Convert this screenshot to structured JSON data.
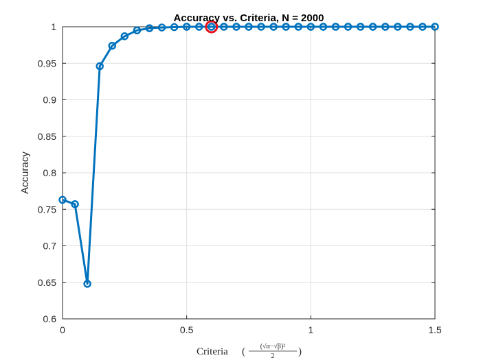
{
  "chart_data": {
    "type": "line",
    "title": "Accuracy vs. Criteria, N = 2000",
    "xlabel": "Criteria",
    "xlabel_math_numerator": "(√α−√β)²",
    "xlabel_math_denominator": "2",
    "ylabel": "Accuracy",
    "xlim": [
      0,
      1.5
    ],
    "ylim": [
      0.6,
      1.0
    ],
    "grid": true,
    "line_color": "#0072BD",
    "highlight_color": "#E8141E",
    "x_ticks": [
      0,
      0.5,
      1,
      1.5
    ],
    "x_tick_labels": [
      "0",
      "0.5",
      "1",
      "1.5"
    ],
    "y_ticks": [
      0.6,
      0.65,
      0.7,
      0.75,
      0.8,
      0.85,
      0.9,
      0.95,
      1.0
    ],
    "y_tick_labels": [
      "0.6",
      "0.65",
      "0.7",
      "0.75",
      "0.8",
      "0.85",
      "0.9",
      "0.95",
      "1"
    ],
    "series": [
      {
        "x": [
          0,
          0.05,
          0.1,
          0.15,
          0.2,
          0.25,
          0.3,
          0.35,
          0.4,
          0.45,
          0.5,
          0.55,
          0.6,
          0.65,
          0.7,
          0.75,
          0.8,
          0.85,
          0.9,
          0.95,
          1.0,
          1.05,
          1.1,
          1.15,
          1.2,
          1.25,
          1.3,
          1.35,
          1.4,
          1.45,
          1.5
        ],
        "y": [
          0.763,
          0.757,
          0.648,
          0.946,
          0.974,
          0.987,
          0.995,
          0.998,
          0.999,
          0.9995,
          1.0,
          1.0,
          1.0,
          1.0,
          1.0,
          1.0,
          1.0,
          1.0,
          1.0,
          1.0,
          1.0,
          1.0,
          1.0,
          1.0,
          1.0,
          1.0,
          1.0,
          1.0,
          1.0,
          1.0,
          1.0
        ]
      }
    ],
    "highlight_point": {
      "x": 0.6,
      "y": 1.0
    }
  }
}
